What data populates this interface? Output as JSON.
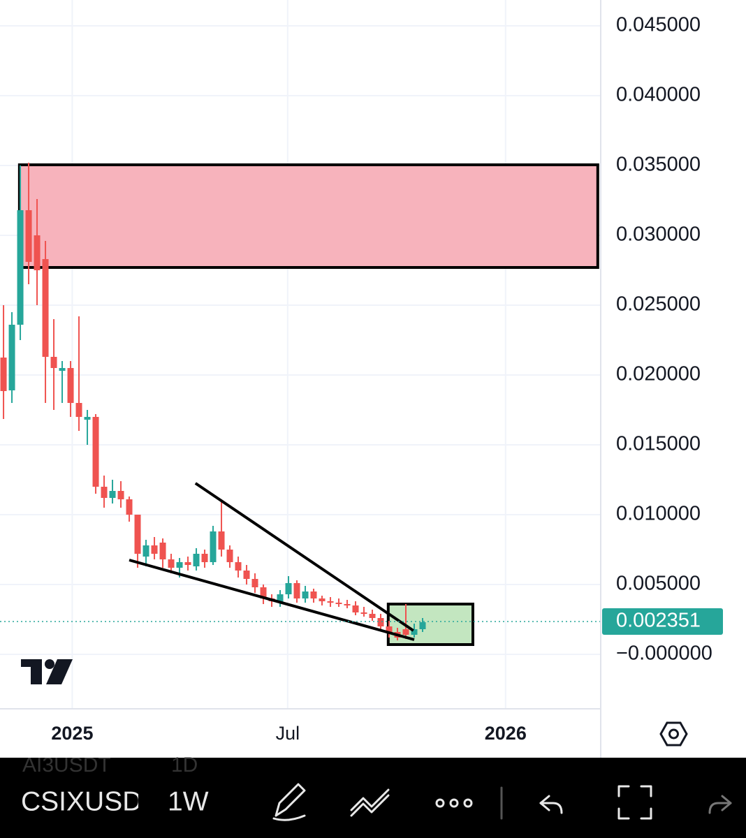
{
  "chart_data": {
    "type": "candlestick",
    "categories": [
      null,
      null,
      null,
      null,
      null,
      null,
      null,
      null,
      null,
      null,
      null,
      null,
      null,
      null,
      null,
      null,
      null,
      null,
      null,
      null,
      null,
      null,
      null,
      null,
      null,
      null,
      null,
      null,
      null,
      null,
      null,
      null,
      null,
      null,
      null,
      null,
      null,
      null,
      null,
      null,
      null,
      null,
      null,
      null,
      null,
      null,
      null,
      null,
      null,
      null,
      null
    ],
    "open": [
      0.02125,
      0.0189,
      0.0236,
      0.0318,
      0.03,
      0.0283,
      0.0213,
      0.0203,
      0.0205,
      0.018,
      0.0168,
      0.017,
      0.012,
      0.0112,
      0.0117,
      0.0111,
      0.01,
      0.007,
      0.0078,
      0.008,
      0.0068,
      0.0062,
      0.0066,
      0.0063,
      0.0072,
      0.0066,
      0.0088,
      0.0075,
      0.0066,
      0.006,
      0.0054,
      0.0048,
      0.004,
      0.0037,
      0.0043,
      0.0051,
      0.004,
      0.0045,
      0.004,
      0.0038,
      0.0037,
      0.0036,
      0.0035,
      0.003,
      0.0029,
      0.0026,
      0.002,
      0.0016,
      0.0018,
      0.0014,
      0.0018
    ],
    "high": [
      0.025,
      0.0245,
      0.035,
      0.0352,
      0.0326,
      0.0296,
      0.024,
      0.021,
      0.021,
      0.0242,
      0.0175,
      0.0172,
      0.0128,
      0.0125,
      0.0124,
      0.0113,
      0.01,
      0.0082,
      0.0084,
      0.0083,
      0.0072,
      0.0069,
      0.007,
      0.0076,
      0.0075,
      0.0092,
      0.0111,
      0.0078,
      0.007,
      0.0064,
      0.0058,
      0.005,
      0.0043,
      0.0046,
      0.0056,
      0.0053,
      0.0049,
      0.0047,
      0.0042,
      0.0041,
      0.004,
      0.0039,
      0.0038,
      0.0034,
      0.0032,
      0.0029,
      0.0024,
      0.0019,
      0.0036,
      0.0022,
      0.0026
    ],
    "low": [
      0.01685,
      0.018,
      0.0225,
      0.0265,
      0.025,
      0.018,
      0.0175,
      0.018,
      0.017,
      0.016,
      0.015,
      0.0115,
      0.0105,
      0.0108,
      0.0105,
      0.0095,
      0.0062,
      0.0063,
      0.0068,
      0.0062,
      0.0058,
      0.0055,
      0.006,
      0.006,
      0.0062,
      0.0064,
      0.007,
      0.0062,
      0.0055,
      0.005,
      0.0044,
      0.0036,
      0.0034,
      0.0034,
      0.004,
      0.0037,
      0.0037,
      0.0037,
      0.0035,
      0.0034,
      0.0034,
      0.0033,
      0.0028,
      0.0027,
      0.0024,
      0.0017,
      0.0012,
      0.001,
      0.0011,
      0.0012,
      0.0016
    ],
    "close": [
      0.01885,
      0.0236,
      0.0318,
      0.0281,
      0.0275,
      0.0213,
      0.0205,
      0.0205,
      0.018,
      0.017,
      0.017,
      0.012,
      0.0112,
      0.0117,
      0.0111,
      0.01,
      0.0072,
      0.0078,
      0.0072,
      0.0068,
      0.0062,
      0.0066,
      0.0064,
      0.0072,
      0.0066,
      0.0088,
      0.0075,
      0.0066,
      0.006,
      0.0054,
      0.0048,
      0.004,
      0.0038,
      0.0043,
      0.0051,
      0.004,
      0.0045,
      0.004,
      0.0038,
      0.0037,
      0.0036,
      0.0035,
      0.003,
      0.0029,
      0.0026,
      0.002,
      0.0016,
      0.0012,
      0.0014,
      0.0018,
      0.0023
    ],
    "up_color": "#26a69a",
    "down_color": "#ef5350",
    "xlim": [
      -0.42,
      71.25
    ],
    "xticks": [
      {
        "value": 8.2,
        "label": "2025"
      },
      {
        "value": 33.9,
        "label": "Jul"
      },
      {
        "value": 59.9,
        "label": "2026"
      }
    ],
    "ylim": [
      -0.0039,
      0.04685
    ],
    "yticks": [
      {
        "value": 0,
        "label": "−0.000000"
      },
      {
        "value": 0.005,
        "label": "0.005000"
      },
      {
        "value": 0.01,
        "label": "0.010000"
      },
      {
        "value": 0.015,
        "label": "0.015000"
      },
      {
        "value": 0.02,
        "label": "0.020000"
      },
      {
        "value": 0.025,
        "label": "0.025000"
      },
      {
        "value": 0.03,
        "label": "0.030000"
      },
      {
        "value": 0.035,
        "label": "0.035000"
      },
      {
        "value": 0.04,
        "label": "0.040000"
      },
      {
        "value": 0.045,
        "label": "0.045000"
      }
    ],
    "grid": true,
    "last_price": {
      "value": 0.002351,
      "label": "0.002351"
    },
    "zones": [
      {
        "x": [
          1.9,
          70.9
        ],
        "y": [
          0.0277,
          0.03505
        ],
        "color": "#f7b3bc"
      },
      {
        "x": [
          45.9,
          56
        ],
        "y": [
          0.0007,
          0.0036
        ],
        "color": "#c3e6c0"
      }
    ],
    "trend_lines": [
      {
        "x": [
          22.9,
          48.9
        ],
        "y": [
          0.01225,
          0.0017
        ]
      },
      {
        "x": [
          15,
          49
        ],
        "y": [
          0.00675,
          0.00105
        ]
      }
    ]
  },
  "toolbar": {
    "symbol": "CSIXUSD",
    "interval": "1W",
    "ghost_symbol": "AI3USDT",
    "ghost_interval": "1D"
  }
}
